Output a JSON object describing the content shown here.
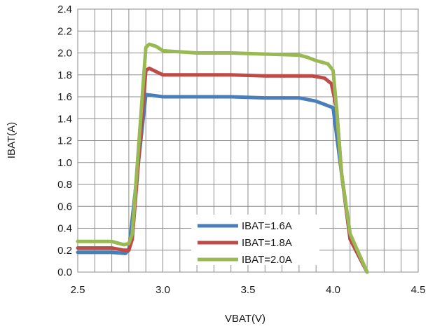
{
  "chart_data": {
    "type": "line",
    "title": "",
    "xlabel": "VBAT(V)",
    "ylabel": "IBAT(A)",
    "xlim": [
      2.5,
      4.5
    ],
    "ylim": [
      0.0,
      2.4
    ],
    "x_ticks": [
      "2.5",
      "3.0",
      "3.5",
      "4.0",
      "4.5"
    ],
    "x_tick_values": [
      2.5,
      3.0,
      3.5,
      4.0,
      4.5
    ],
    "y_ticks": [
      "0.0",
      "0.2",
      "0.4",
      "0.6",
      "0.8",
      "1.0",
      "1.2",
      "1.4",
      "1.6",
      "1.8",
      "2.0",
      "2.2",
      "2.4"
    ],
    "y_tick_values": [
      0.0,
      0.2,
      0.4,
      0.6,
      0.8,
      1.0,
      1.2,
      1.4,
      1.6,
      1.8,
      2.0,
      2.2,
      2.4
    ],
    "grid": true,
    "legend_position": "lower-center",
    "series": [
      {
        "name": "IBAT=1.6A",
        "color": "#4a7ebb",
        "x": [
          2.5,
          2.6,
          2.7,
          2.78,
          2.8,
          2.9,
          2.95,
          3.0,
          3.2,
          3.4,
          3.6,
          3.8,
          3.9,
          4.0,
          4.05,
          4.1,
          4.2
        ],
        "y": [
          0.18,
          0.18,
          0.18,
          0.17,
          0.2,
          1.62,
          1.61,
          1.6,
          1.6,
          1.6,
          1.59,
          1.59,
          1.56,
          1.5,
          0.9,
          0.3,
          0.0
        ]
      },
      {
        "name": "IBAT=1.8A",
        "color": "#be4b48",
        "x": [
          2.5,
          2.6,
          2.7,
          2.77,
          2.8,
          2.82,
          2.9,
          2.92,
          2.96,
          3.0,
          3.2,
          3.4,
          3.6,
          3.8,
          3.88,
          3.95,
          3.99,
          4.02,
          4.05,
          4.1,
          4.2
        ],
        "y": [
          0.22,
          0.22,
          0.22,
          0.2,
          0.2,
          0.3,
          1.84,
          1.86,
          1.83,
          1.8,
          1.8,
          1.8,
          1.79,
          1.79,
          1.79,
          1.77,
          1.72,
          1.5,
          0.9,
          0.3,
          0.0
        ]
      },
      {
        "name": "IBAT=2.0A",
        "color": "#98b954",
        "x": [
          2.5,
          2.6,
          2.7,
          2.77,
          2.8,
          2.82,
          2.9,
          2.92,
          2.96,
          3.0,
          3.2,
          3.4,
          3.6,
          3.8,
          3.85,
          3.9,
          3.97,
          4.0,
          4.02,
          4.05,
          4.1,
          4.2
        ],
        "y": [
          0.28,
          0.28,
          0.28,
          0.25,
          0.26,
          0.35,
          2.05,
          2.08,
          2.06,
          2.02,
          2.0,
          2.0,
          1.99,
          1.98,
          1.96,
          1.93,
          1.9,
          1.84,
          1.5,
          0.9,
          0.35,
          0.0
        ]
      }
    ]
  }
}
